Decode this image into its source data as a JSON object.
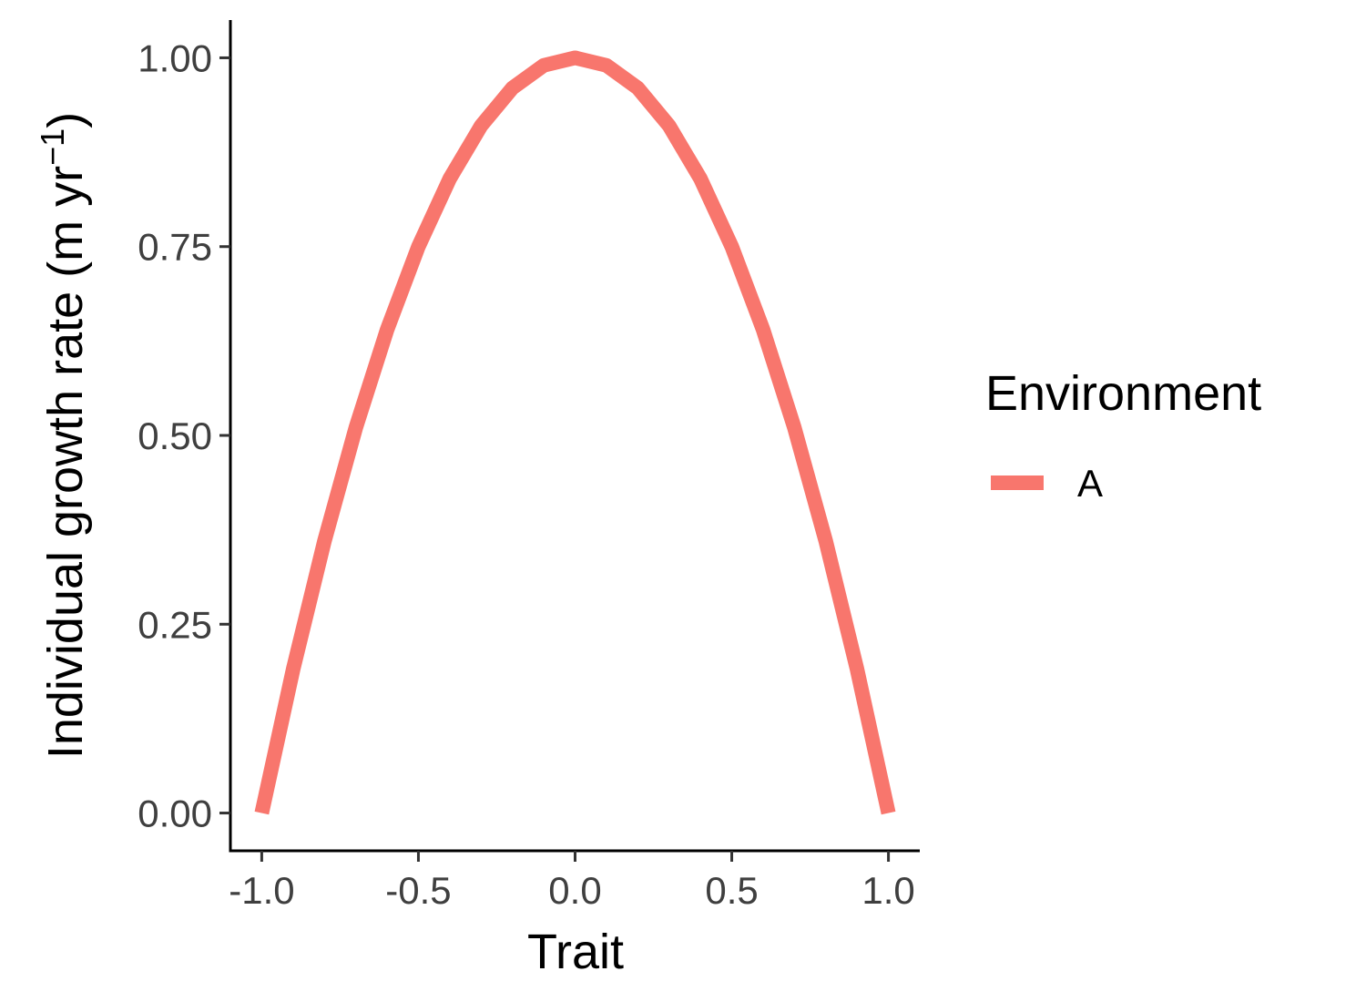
{
  "chart_data": {
    "type": "line",
    "xlabel": "Trait",
    "ylabel": {
      "main": "Individual growth rate (m yr",
      "superscript": "−1",
      "close": ")"
    },
    "xlim": [
      -1.1,
      1.1
    ],
    "ylim": [
      -0.05,
      1.05
    ],
    "xticks": [
      -1.0,
      -0.5,
      0.0,
      0.5,
      1.0
    ],
    "xtick_labels": [
      "-1.0",
      "-0.5",
      "0.0",
      "0.5",
      "1.0"
    ],
    "yticks": [
      0.0,
      0.25,
      0.5,
      0.75,
      1.0
    ],
    "ytick_labels": [
      "0.00",
      "0.25",
      "0.50",
      "0.75",
      "1.00"
    ],
    "legend": {
      "title": "Environment",
      "placement": "right",
      "entries": [
        {
          "label": "A",
          "color": "#F8766D"
        }
      ]
    },
    "grid": false,
    "series": [
      {
        "name": "A",
        "color": "#F8766D",
        "x": [
          -1.0,
          -0.9,
          -0.8,
          -0.7,
          -0.6,
          -0.5,
          -0.4,
          -0.3,
          -0.2,
          -0.1,
          0.0,
          0.1,
          0.2,
          0.3,
          0.4,
          0.5,
          0.6,
          0.7,
          0.8,
          0.9,
          1.0
        ],
        "y": [
          0.0,
          0.19,
          0.36,
          0.51,
          0.64,
          0.75,
          0.84,
          0.91,
          0.96,
          0.99,
          1.0,
          0.99,
          0.96,
          0.91,
          0.84,
          0.75,
          0.64,
          0.51,
          0.36,
          0.19,
          0.0
        ]
      }
    ]
  }
}
